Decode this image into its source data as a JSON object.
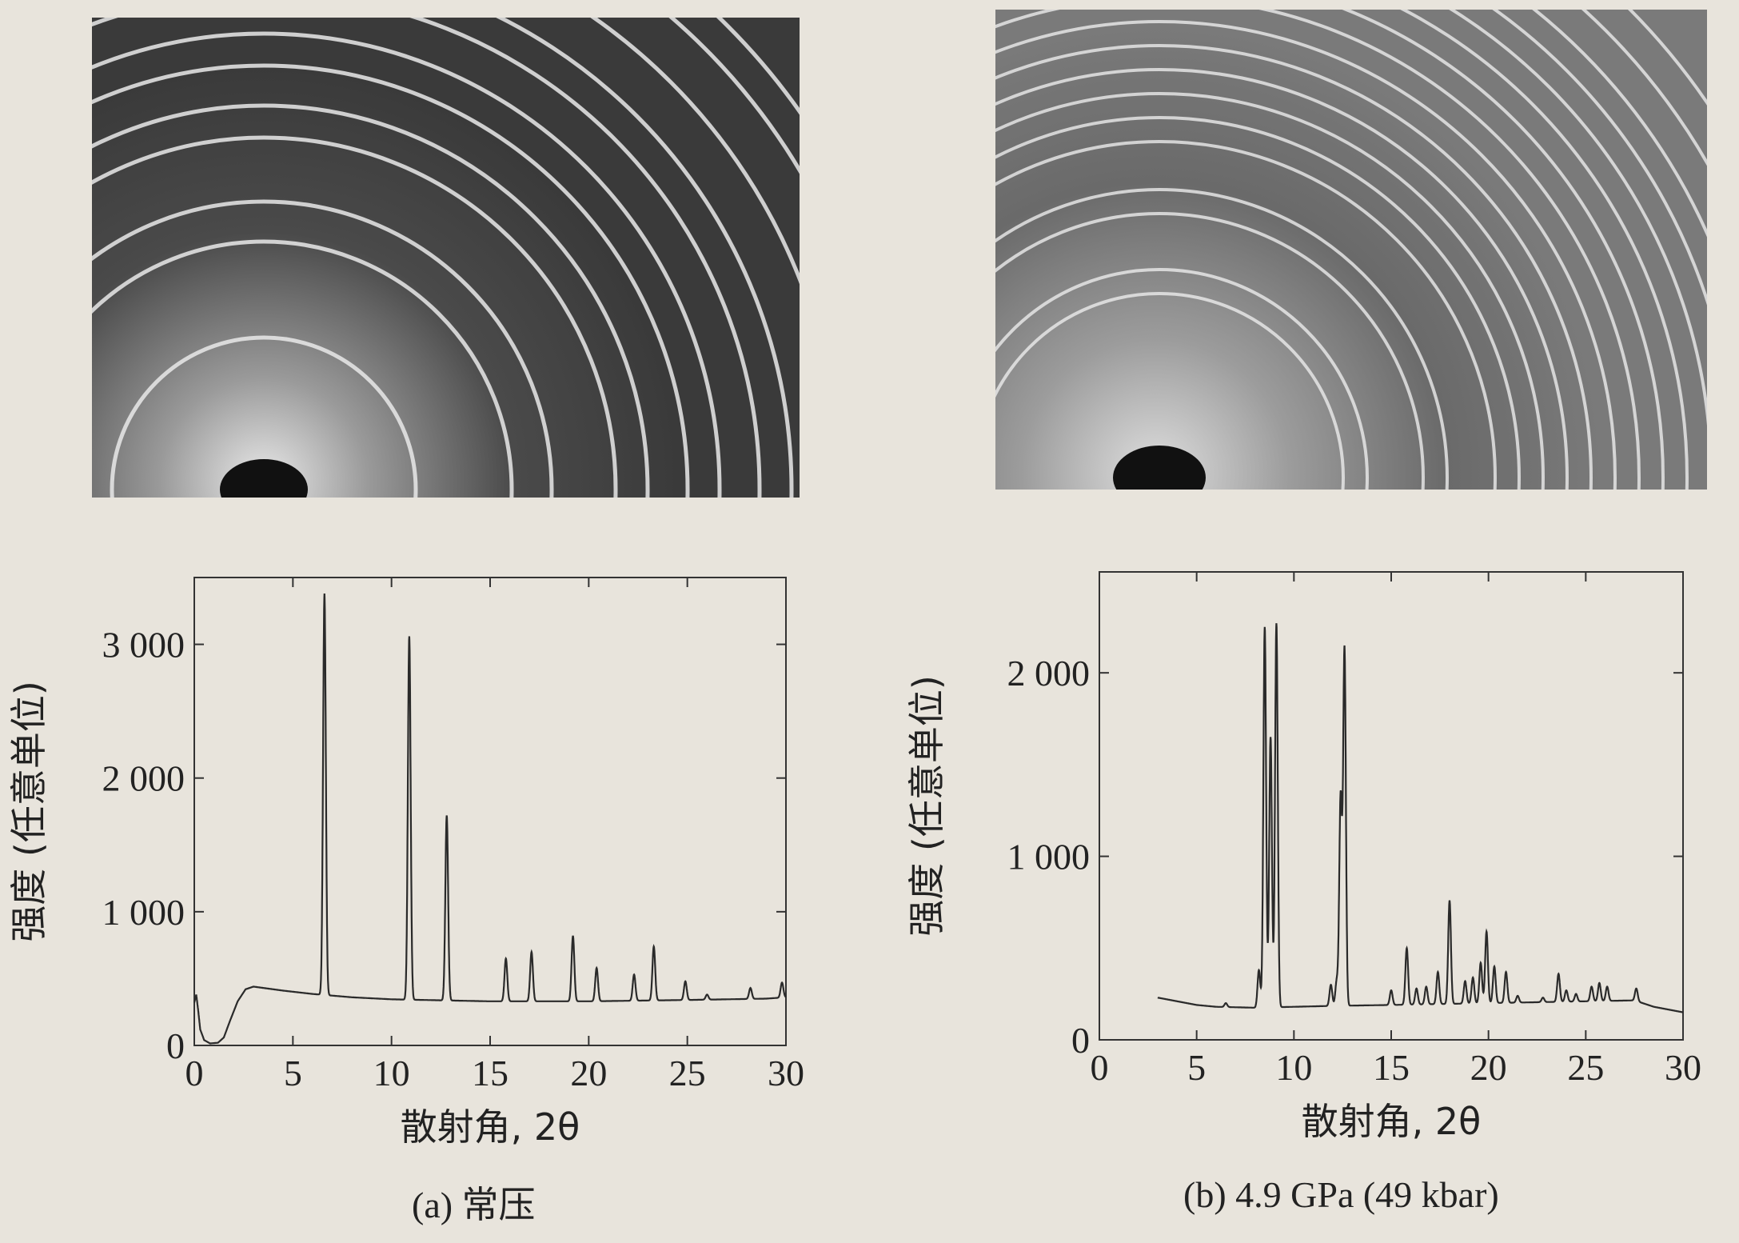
{
  "figures": [
    {
      "caption": "(a) 常压"
    },
    {
      "caption": "(b) 4.9 GPa (49 kbar)"
    }
  ],
  "chart_data": [
    {
      "type": "line",
      "title": "",
      "xlabel": "散射角, 2θ",
      "ylabel": "强度 (任意单位)",
      "xlim": [
        0,
        30
      ],
      "ylim": [
        0,
        3500
      ],
      "xticks": [
        "0",
        "5",
        "10",
        "15",
        "20",
        "25",
        "30"
      ],
      "yticks": [
        "0",
        "1 000",
        "2 000",
        "3 000"
      ],
      "ytick_values": [
        0,
        1000,
        2000,
        3000
      ],
      "xtick_values": [
        0,
        5,
        10,
        15,
        20,
        25,
        30
      ],
      "background": [
        [
          0.0,
          320
        ],
        [
          0.1,
          380
        ],
        [
          0.2,
          260
        ],
        [
          0.3,
          120
        ],
        [
          0.5,
          40
        ],
        [
          0.8,
          15
        ],
        [
          1.2,
          20
        ],
        [
          1.5,
          60
        ],
        [
          1.8,
          180
        ],
        [
          2.2,
          330
        ],
        [
          2.6,
          420
        ],
        [
          3.0,
          440
        ],
        [
          3.5,
          430
        ],
        [
          4.5,
          410
        ],
        [
          6.0,
          385
        ],
        [
          8.0,
          360
        ],
        [
          10.0,
          345
        ],
        [
          15.0,
          330
        ],
        [
          20.0,
          330
        ],
        [
          25.0,
          340
        ],
        [
          29.0,
          350
        ],
        [
          30.0,
          360
        ]
      ],
      "peaks": [
        [
          6.6,
          3380
        ],
        [
          10.9,
          3060
        ],
        [
          12.8,
          1720
        ],
        [
          15.8,
          650
        ],
        [
          17.1,
          700
        ],
        [
          19.2,
          820
        ],
        [
          20.4,
          580
        ],
        [
          22.3,
          530
        ],
        [
          23.3,
          740
        ],
        [
          24.9,
          480
        ],
        [
          26.0,
          380
        ],
        [
          28.2,
          430
        ],
        [
          29.8,
          470
        ]
      ]
    },
    {
      "type": "line",
      "title": "",
      "xlabel": "散射角, 2θ",
      "ylabel": "强度 (任意单位)",
      "xlim": [
        0,
        30
      ],
      "ylim": [
        0,
        2550
      ],
      "xticks": [
        "0",
        "5",
        "10",
        "15",
        "20",
        "25",
        "30"
      ],
      "yticks": [
        "0",
        "1 000",
        "2 000"
      ],
      "ytick_values": [
        0,
        1000,
        2000
      ],
      "xtick_values": [
        0,
        5,
        10,
        15,
        20,
        25,
        30
      ],
      "background": [
        [
          3.0,
          230
        ],
        [
          4.0,
          210
        ],
        [
          5.0,
          190
        ],
        [
          6.0,
          180
        ],
        [
          8.0,
          175
        ],
        [
          10.0,
          180
        ],
        [
          12.0,
          185
        ],
        [
          15.0,
          190
        ],
        [
          20.0,
          200
        ],
        [
          25.0,
          210
        ],
        [
          27.5,
          215
        ],
        [
          28.5,
          180
        ],
        [
          30.0,
          150
        ]
      ],
      "peaks": [
        [
          6.5,
          200
        ],
        [
          8.2,
          380
        ],
        [
          8.5,
          2250
        ],
        [
          8.8,
          1650
        ],
        [
          9.1,
          2270
        ],
        [
          11.9,
          300
        ],
        [
          12.2,
          320
        ],
        [
          12.4,
          1320
        ],
        [
          12.6,
          2130
        ],
        [
          15.0,
          270
        ],
        [
          15.8,
          500
        ],
        [
          16.3,
          280
        ],
        [
          16.8,
          290
        ],
        [
          17.4,
          370
        ],
        [
          18.0,
          760
        ],
        [
          18.8,
          320
        ],
        [
          19.2,
          340
        ],
        [
          19.6,
          420
        ],
        [
          19.9,
          590
        ],
        [
          20.3,
          400
        ],
        [
          20.9,
          370
        ],
        [
          21.5,
          240
        ],
        [
          22.8,
          230
        ],
        [
          23.6,
          360
        ],
        [
          24.0,
          270
        ],
        [
          24.5,
          250
        ],
        [
          25.3,
          290
        ],
        [
          25.7,
          310
        ],
        [
          26.1,
          290
        ],
        [
          27.6,
          280
        ]
      ]
    }
  ]
}
